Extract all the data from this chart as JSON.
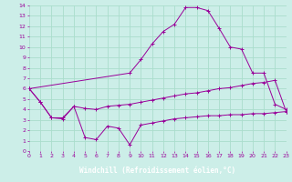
{
  "background_color": "#cceee8",
  "grid_color": "#aaddcc",
  "line_color": "#990099",
  "xlabel": "Windchill (Refroidissement éolien,°C)",
  "xlabel_bg": "#7744aa",
  "xlim": [
    0,
    23
  ],
  "ylim": [
    0,
    14
  ],
  "xticks": [
    0,
    1,
    2,
    3,
    4,
    5,
    6,
    7,
    8,
    9,
    10,
    11,
    12,
    13,
    14,
    15,
    16,
    17,
    18,
    19,
    20,
    21,
    22,
    23
  ],
  "yticks": [
    0,
    1,
    2,
    3,
    4,
    5,
    6,
    7,
    8,
    9,
    10,
    11,
    12,
    13,
    14
  ],
  "line1_x": [
    0,
    1,
    2,
    3,
    4,
    5,
    6,
    7,
    8,
    9,
    10,
    11,
    12,
    13,
    14,
    15,
    16,
    17,
    18,
    19,
    20,
    21,
    22,
    23
  ],
  "line1_y": [
    6,
    4.7,
    3.2,
    3.2,
    4.3,
    4.1,
    4.0,
    4.3,
    4.4,
    4.5,
    4.7,
    4.9,
    5.1,
    5.3,
    5.5,
    5.6,
    5.8,
    6.0,
    6.1,
    6.3,
    6.5,
    6.6,
    6.8,
    3.8
  ],
  "line2_x": [
    0,
    1,
    2,
    3,
    4,
    5,
    6,
    7,
    8,
    9,
    10,
    11,
    12,
    13,
    14,
    15,
    16,
    17,
    18,
    19,
    20,
    21,
    22,
    23
  ],
  "line2_y": [
    6,
    4.7,
    3.2,
    3.1,
    4.3,
    1.3,
    1.1,
    2.4,
    2.2,
    0.6,
    2.5,
    2.7,
    2.9,
    3.1,
    3.2,
    3.3,
    3.4,
    3.4,
    3.5,
    3.5,
    3.6,
    3.6,
    3.7,
    3.8
  ],
  "line3_x": [
    0,
    9,
    10,
    11,
    12,
    13,
    14,
    15,
    16,
    17,
    18,
    19,
    20,
    21,
    22,
    23
  ],
  "line3_y": [
    6,
    7.5,
    8.8,
    10.3,
    11.5,
    12.2,
    13.8,
    13.8,
    13.5,
    11.8,
    10.0,
    9.8,
    7.5,
    7.5,
    4.5,
    4.0
  ]
}
